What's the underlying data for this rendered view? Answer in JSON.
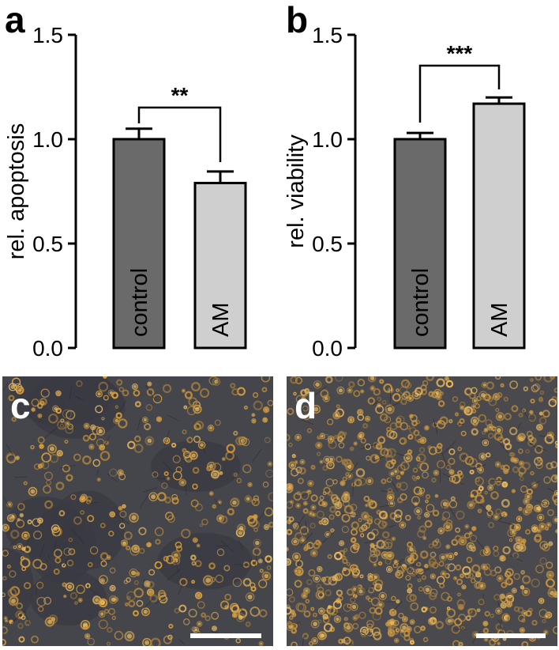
{
  "figure": {
    "panel_labels": [
      "a",
      "b",
      "c",
      "d"
    ]
  },
  "colors": {
    "control_bar": "#6a6a6a",
    "am_bar": "#cfcfcf",
    "axis": "#000000"
  },
  "chart_data": [
    {
      "type": "bar",
      "panel": "a",
      "ylabel": "rel. apoptosis",
      "xlabel": "",
      "title": "",
      "ylim": [
        0,
        1.5
      ],
      "yticks": [
        "0.0",
        "0.5",
        "1.0",
        "1.5"
      ],
      "categories": [
        "control",
        "AM"
      ],
      "values": [
        1.0,
        0.79
      ],
      "errors": [
        0.05,
        0.055
      ],
      "significance": "**",
      "grid": false
    },
    {
      "type": "bar",
      "panel": "b",
      "ylabel": "rel. viability",
      "xlabel": "",
      "title": "",
      "ylim": [
        0,
        1.5
      ],
      "yticks": [
        "0.0",
        "0.5",
        "1.0",
        "1.5"
      ],
      "categories": [
        "control",
        "AM"
      ],
      "values": [
        1.0,
        1.17
      ],
      "errors": [
        0.03,
        0.03
      ],
      "significance": "***",
      "grid": false
    }
  ],
  "micrographs": [
    {
      "panel": "c",
      "density": "sparse",
      "background": "#45464c",
      "cell_color": "#d49a3a"
    },
    {
      "panel": "d",
      "density": "dense",
      "background": "#4a4a4e",
      "cell_color": "#c8943e"
    }
  ]
}
